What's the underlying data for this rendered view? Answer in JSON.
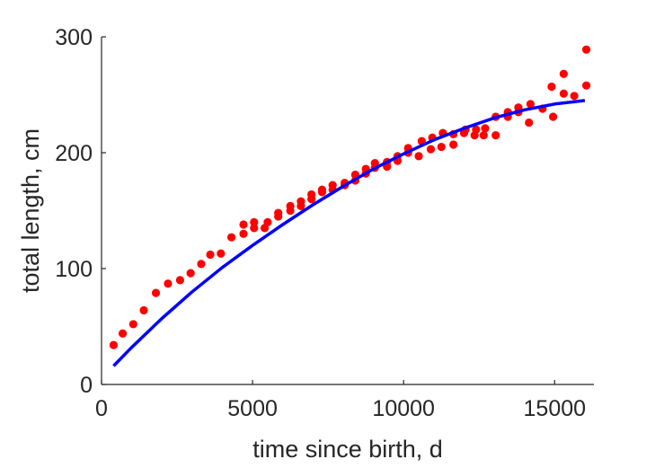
{
  "chart_data": {
    "type": "scatter",
    "title": "",
    "xlabel": "time since birth, d",
    "ylabel": "total length, cm",
    "xlim": [
      0,
      16300
    ],
    "ylim": [
      0,
      300
    ],
    "xticks": [
      0,
      5000,
      10000,
      15000
    ],
    "yticks": [
      0,
      100,
      200,
      300
    ],
    "grid": false,
    "colors": {
      "points": "#ff0000",
      "fit": "#0000ff",
      "axis": "#262626"
    },
    "points": [
      [
        400,
        34
      ],
      [
        700,
        44
      ],
      [
        1050,
        52
      ],
      [
        1400,
        64
      ],
      [
        1800,
        79
      ],
      [
        2200,
        87
      ],
      [
        2600,
        90
      ],
      [
        2950,
        96
      ],
      [
        3300,
        104
      ],
      [
        3600,
        112
      ],
      [
        3950,
        113
      ],
      [
        4300,
        127
      ],
      [
        4700,
        130
      ],
      [
        4700,
        138
      ],
      [
        5050,
        135
      ],
      [
        5050,
        140
      ],
      [
        5400,
        135
      ],
      [
        5500,
        140
      ],
      [
        5850,
        145
      ],
      [
        5850,
        148
      ],
      [
        6250,
        150
      ],
      [
        6250,
        154
      ],
      [
        6600,
        154
      ],
      [
        6600,
        158
      ],
      [
        6950,
        160
      ],
      [
        6950,
        164
      ],
      [
        7300,
        166
      ],
      [
        7300,
        168
      ],
      [
        7650,
        168
      ],
      [
        7650,
        172
      ],
      [
        8050,
        172
      ],
      [
        8050,
        174
      ],
      [
        8400,
        176
      ],
      [
        8400,
        181
      ],
      [
        8750,
        182
      ],
      [
        8750,
        186
      ],
      [
        9050,
        187
      ],
      [
        9050,
        191
      ],
      [
        9450,
        188
      ],
      [
        9450,
        192
      ],
      [
        9800,
        193
      ],
      [
        9800,
        197
      ],
      [
        10150,
        200
      ],
      [
        10150,
        204
      ],
      [
        10500,
        197
      ],
      [
        10600,
        210
      ],
      [
        10900,
        203
      ],
      [
        10950,
        213
      ],
      [
        11250,
        205
      ],
      [
        11300,
        217
      ],
      [
        11650,
        207
      ],
      [
        11650,
        216
      ],
      [
        12000,
        217
      ],
      [
        12050,
        220
      ],
      [
        12350,
        215
      ],
      [
        12400,
        220
      ],
      [
        12650,
        215
      ],
      [
        12700,
        221
      ],
      [
        13050,
        215
      ],
      [
        13050,
        231
      ],
      [
        13450,
        231
      ],
      [
        13450,
        235
      ],
      [
        13800,
        235
      ],
      [
        13800,
        239
      ],
      [
        14150,
        226
      ],
      [
        14200,
        242
      ],
      [
        14600,
        238
      ],
      [
        14900,
        257
      ],
      [
        14950,
        231
      ],
      [
        15300,
        268
      ],
      [
        15300,
        251
      ],
      [
        15650,
        249
      ],
      [
        16050,
        289
      ],
      [
        16050,
        258
      ]
    ],
    "fit_curve": [
      [
        400,
        16
      ],
      [
        1000,
        32
      ],
      [
        2000,
        57
      ],
      [
        3000,
        80
      ],
      [
        4000,
        101
      ],
      [
        5000,
        120
      ],
      [
        6000,
        138
      ],
      [
        7000,
        155
      ],
      [
        8000,
        171
      ],
      [
        9000,
        186
      ],
      [
        10000,
        199
      ],
      [
        11000,
        211
      ],
      [
        12000,
        221
      ],
      [
        13000,
        230
      ],
      [
        14000,
        237
      ],
      [
        15000,
        242
      ],
      [
        16000,
        245
      ]
    ]
  }
}
